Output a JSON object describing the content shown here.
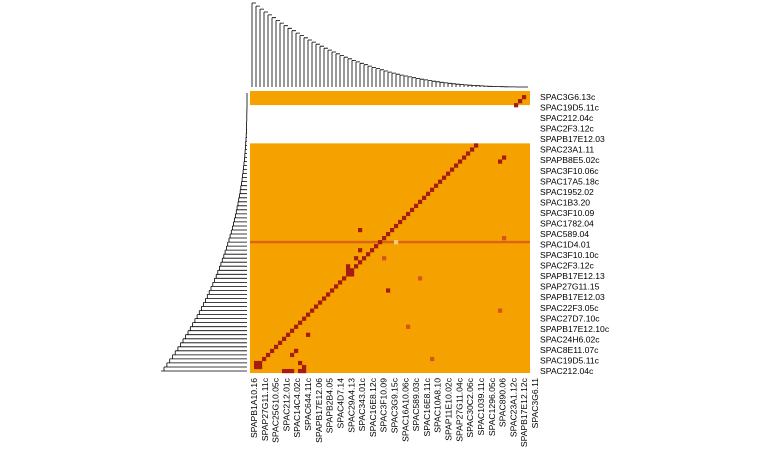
{
  "chart_data": {
    "type": "heatmap",
    "title": "",
    "xlabel": "",
    "ylabel": "",
    "row_labels": [
      "SPAC3G6.13c",
      "SPAC19D5.11c",
      "SPAC212.04c",
      "SPAC2F3.12c",
      "SPAPB17E12.03",
      "SPAC23A1.11",
      "SPAPB8E5.02c",
      "SPAC3F10.06c",
      "SPAC17A5.18c",
      "SPAC1952.02",
      "SPAC1B3.20",
      "SPAC3F10.09",
      "SPAC1782.04",
      "SPAC589.04",
      "SPAC1D4.01",
      "SPAC3F10.10c",
      "SPAC2F3.12c",
      "SPAPB17E12.13",
      "SPAP27G11.15",
      "SPAPB17E12.03",
      "SPAC22F3.05c",
      "SPAC27D7.10c",
      "SPAPB17E12.10c",
      "SPAC24H6.02c",
      "SPAC8E11.07c",
      "SPAC19D5.11c",
      "SPAC212.04c"
    ],
    "col_labels": [
      "SPAPB1A10.16",
      "SPAP27G11.11c",
      "SPAC25G10.05c",
      "SPAC212.01c",
      "SPAC14C4.02c",
      "SPAC644.11c",
      "SPAPB17E12.06",
      "SPAPB2B4.05",
      "SPAC4D7.14",
      "SPAC29A4.13",
      "SPAC343.01c",
      "SPAC16E8.12c",
      "SPAC3F10.09",
      "SPAC3G9.15c",
      "SPAC16A10.06c",
      "SPAC589.03c",
      "SPAC16E8.11c",
      "SPAC10A8.10",
      "SPAP11E10.02c",
      "SPAP27G11.04c",
      "SPAC30C2.06c",
      "SPAC1039.11c",
      "SPAC1296.05c",
      "SPAC890.06",
      "SPAC23A1.12c",
      "SPAPB17E12.12c",
      "SPAC3G6.11"
    ],
    "colors": {
      "background": "#f5a100",
      "strong": "#a51c14",
      "medium": "#d2561a",
      "light": "#f4cf7a",
      "blank": "#ffffff"
    }
  }
}
